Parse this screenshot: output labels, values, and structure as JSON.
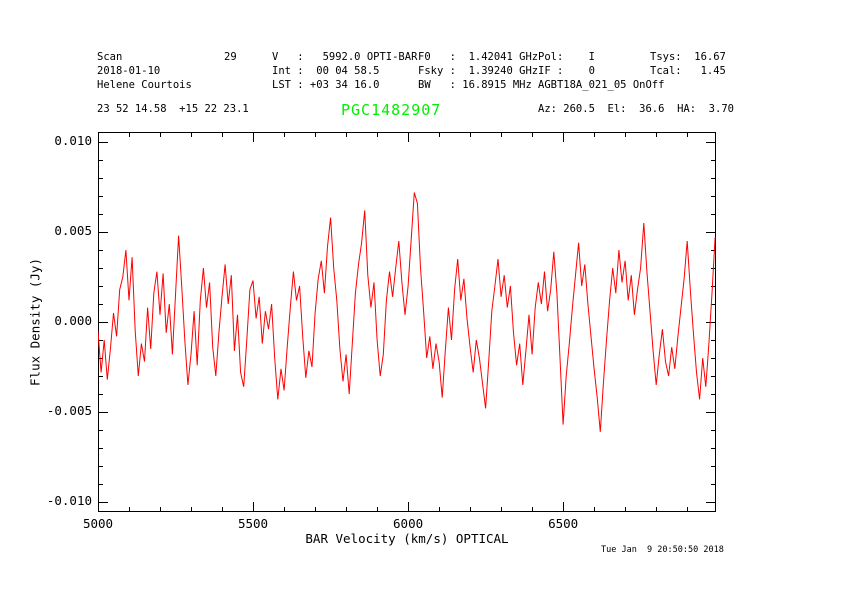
{
  "scan_header": {
    "col1": [
      "Scan",
      "2018-01-10",
      "Helene Courtois"
    ],
    "col1_value": "29",
    "col2": [
      "V   :   5992.0 OPTI-BAR",
      "Int :  00 04 58.5",
      "LST : +03 34 16.0"
    ],
    "col3": [
      "F0   :  1.42041 GHz",
      "Fsky :  1.39240 GHz",
      "BW   : 16.8915 MHz"
    ],
    "col4": [
      "Pol:    I",
      "IF :    0",
      "AGBT18A_021_05 OnOff"
    ],
    "col5": [
      "Tsys:  16.67",
      "Tcal:   1.45"
    ]
  },
  "pointing": {
    "ra_dec": "23 52 14.58  +15 22 23.1",
    "az_el_ha": "Az: 260.5  El:  36.6  HA:  3.70"
  },
  "footer": {
    "timestamp": "Tue Jan  9 20:50:50 2018"
  },
  "chart_data": {
    "type": "line",
    "title": "PGC1482907",
    "title_color": "#00ef00",
    "xlabel": "BAR Velocity (km/s) OPTICAL",
    "ylabel": "Flux Density (Jy)",
    "xlim": [
      5000,
      6993
    ],
    "ylim": [
      -0.01056,
      0.01056
    ],
    "grid": false,
    "legend": "none",
    "x_major_ticks": [
      5000,
      5500,
      6000,
      6500
    ],
    "x_tick_labels": [
      "5000",
      "5500",
      "6000",
      "6500"
    ],
    "x_minor_step": 100,
    "y_tick_values": [
      0.01,
      0.005,
      0.0,
      -0.005,
      -0.01
    ],
    "y_tick_labels": [
      "0.010",
      "0.005",
      "0.000",
      "-0.005",
      "-0.010"
    ],
    "y_minor_step": 0.001,
    "axis_color": "#000000",
    "background": "#ffffff",
    "series": [
      {
        "name": "spectrum",
        "color": "#ff0000",
        "x_start": 5000,
        "x_step": 10,
        "flux_jy": [
          -0.0005,
          -0.0028,
          -0.001,
          -0.0032,
          -0.0015,
          0.0005,
          -0.0008,
          0.0018,
          0.0025,
          0.004,
          0.0012,
          0.0036,
          -0.0005,
          -0.003,
          -0.0012,
          -0.0022,
          0.0008,
          -0.0015,
          0.0016,
          0.0028,
          0.0004,
          0.0027,
          -0.0006,
          0.001,
          -0.0018,
          0.0015,
          0.0048,
          0.002,
          -0.001,
          -0.0035,
          -0.0018,
          0.0006,
          -0.0024,
          0.0012,
          0.003,
          0.0008,
          0.0022,
          -0.0014,
          -0.003,
          -0.0006,
          0.0014,
          0.0032,
          0.001,
          0.0026,
          -0.0016,
          0.0004,
          -0.0028,
          -0.0036,
          -0.001,
          0.0018,
          0.0023,
          0.0002,
          0.0014,
          -0.0012,
          0.0006,
          -0.0004,
          0.001,
          -0.002,
          -0.0043,
          -0.0026,
          -0.0038,
          -0.0014,
          0.0008,
          0.0028,
          0.0012,
          0.002,
          -0.0008,
          -0.0031,
          -0.0016,
          -0.0025,
          0.0005,
          0.0024,
          0.0034,
          0.0016,
          0.0042,
          0.0058,
          0.003,
          0.0012,
          -0.0015,
          -0.0033,
          -0.0018,
          -0.004,
          -0.0012,
          0.0016,
          0.0032,
          0.0044,
          0.0062,
          0.0026,
          0.0008,
          0.0022,
          -0.001,
          -0.003,
          -0.0018,
          0.0012,
          0.0028,
          0.0014,
          0.003,
          0.0045,
          0.0022,
          0.0004,
          0.002,
          0.0046,
          0.0072,
          0.0066,
          0.003,
          0.0006,
          -0.002,
          -0.0008,
          -0.0026,
          -0.0012,
          -0.0022,
          -0.0042,
          -0.0016,
          0.0008,
          -0.001,
          0.0018,
          0.0035,
          0.0012,
          0.0024,
          0.0002,
          -0.0014,
          -0.0028,
          -0.001,
          -0.002,
          -0.0034,
          -0.0048,
          -0.0022,
          0.0006,
          0.002,
          0.0035,
          0.0014,
          0.0026,
          0.0008,
          0.002,
          -0.0006,
          -0.0024,
          -0.0012,
          -0.0035,
          -0.0016,
          0.0004,
          -0.0018,
          0.0008,
          0.0022,
          0.001,
          0.0028,
          0.0006,
          0.0018,
          0.0039,
          0.0016,
          -0.002,
          -0.0057,
          -0.003,
          -0.0012,
          0.0008,
          0.0026,
          0.0044,
          0.002,
          0.0032,
          0.001,
          -0.0008,
          -0.0026,
          -0.0042,
          -0.0061,
          -0.0034,
          -0.001,
          0.0012,
          0.003,
          0.0016,
          0.004,
          0.0022,
          0.0034,
          0.0012,
          0.0026,
          0.0004,
          0.0018,
          0.003,
          0.0055,
          0.0028,
          0.0006,
          -0.0016,
          -0.0035,
          -0.0018,
          -0.0004,
          -0.0022,
          -0.003,
          -0.0014,
          -0.0026,
          -0.0008,
          0.0008,
          0.0024,
          0.0045,
          0.0018,
          -0.0006,
          -0.0028,
          -0.0043,
          -0.002,
          -0.0036,
          -0.0012,
          0.0016,
          0.0047
        ]
      }
    ]
  }
}
